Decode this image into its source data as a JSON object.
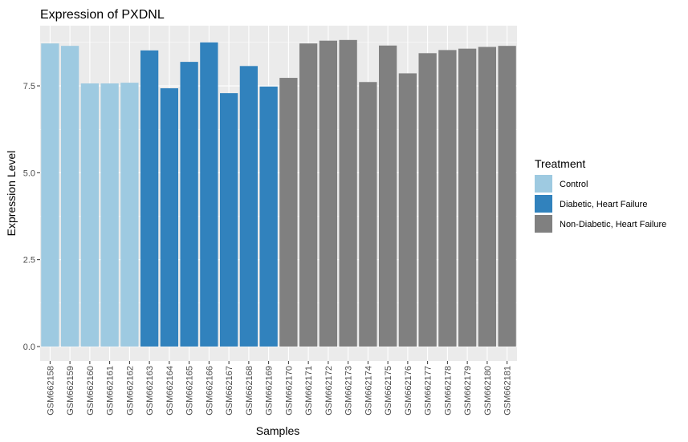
{
  "chart_data": {
    "type": "bar",
    "title": "Expression of  PXDNL",
    "xlabel": "Samples",
    "ylabel": "Expression Level",
    "ylim": [
      0,
      9.2
    ],
    "yticks": [
      "0.0",
      "2.5",
      "5.0",
      "7.5"
    ],
    "ytick_values": [
      0,
      2.5,
      5.0,
      7.5
    ],
    "grid": true,
    "legend_position": "right",
    "legend_title": "Treatment",
    "legend": [
      {
        "label": "Control",
        "color": "#9ecae1"
      },
      {
        "label": "Diabetic, Heart Failure",
        "color": "#3182bd"
      },
      {
        "label": "Non-Diabetic, Heart Failure",
        "color": "#808080"
      }
    ],
    "categories": [
      "GSM662158",
      "GSM662159",
      "GSM662160",
      "GSM662161",
      "GSM662162",
      "GSM662163",
      "GSM662164",
      "GSM662165",
      "GSM662166",
      "GSM662167",
      "GSM662168",
      "GSM662169",
      "GSM662170",
      "GSM662171",
      "GSM662172",
      "GSM662173",
      "GSM662174",
      "GSM662175",
      "GSM662176",
      "GSM662177",
      "GSM662178",
      "GSM662179",
      "GSM662180",
      "GSM662181"
    ],
    "values": [
      8.72,
      8.65,
      7.57,
      7.57,
      7.59,
      8.52,
      7.43,
      8.19,
      8.75,
      7.29,
      8.07,
      7.48,
      7.73,
      8.72,
      8.8,
      8.82,
      7.61,
      8.66,
      7.86,
      8.44,
      8.53,
      8.57,
      8.62,
      8.65
    ],
    "groups": [
      0,
      0,
      0,
      0,
      0,
      1,
      1,
      1,
      1,
      1,
      1,
      1,
      2,
      2,
      2,
      2,
      2,
      2,
      2,
      2,
      2,
      2,
      2,
      2
    ]
  }
}
